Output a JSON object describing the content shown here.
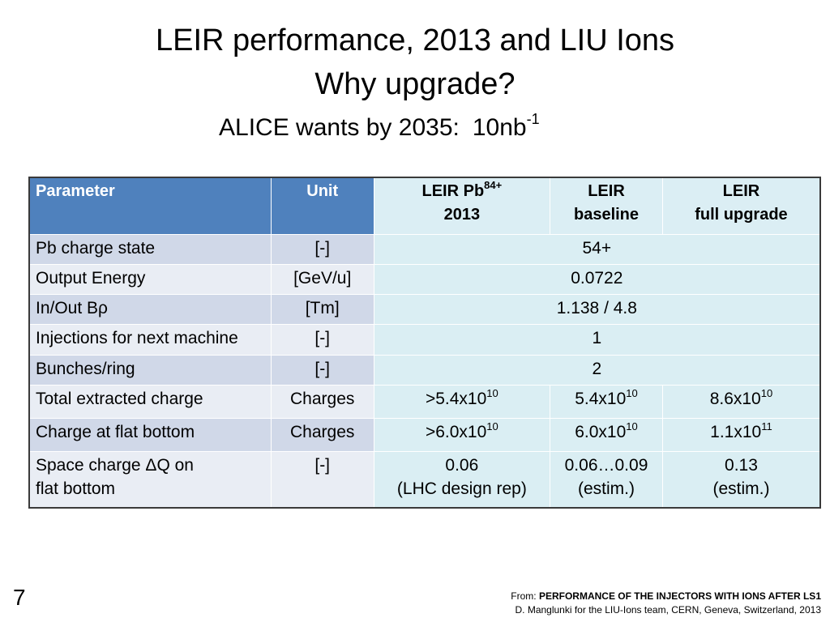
{
  "title": {
    "line1": "LEIR performance, 2013 and LIU Ions",
    "line2": "Why upgrade?",
    "line3_text": "ALICE wants by 2035:",
    "line3_value": "10nb",
    "line3_exp": "-1"
  },
  "table": {
    "headers": {
      "parameter": "Parameter",
      "unit": "Unit",
      "col1_l1": "LEIR Pb",
      "col1_sup": "84+",
      "col1_l2": "2013",
      "col2_l1": "LEIR",
      "col2_l2": "baseline",
      "col3_l1": "LEIR",
      "col3_l2": "full upgrade"
    },
    "rows": [
      {
        "param": "Pb charge state",
        "unit": "[-]",
        "value": "54+"
      },
      {
        "param": "Output Energy",
        "unit": "[GeV/u]",
        "value": "0.0722"
      },
      {
        "param": "In/Out Bρ",
        "unit": "[Tm]",
        "value": "1.138 / 4.8"
      },
      {
        "param": "Injections for next machine",
        "unit": "[-]",
        "value": "1"
      },
      {
        "param": "Bunches/ring",
        "unit": "[-]",
        "value": "2"
      },
      {
        "param": "Total extracted charge",
        "unit": "Charges",
        "v1": ">5.4x10",
        "v1e": "10",
        "v2": "5.4x10",
        "v2e": "10",
        "v3": "8.6x10",
        "v3e": "10"
      },
      {
        "param": "Charge at flat bottom",
        "unit": "Charges",
        "v1": ">6.0x10",
        "v1e": "10",
        "v2": "6.0x10",
        "v2e": "10",
        "v3": "1.1x10",
        "v3e": "11"
      },
      {
        "param_l1": "Space charge ΔQ on",
        "param_l2": "flat bottom",
        "unit": "[-]",
        "v1_l1": "0.06",
        "v1_l2": "(LHC design rep)",
        "v2_l1": "0.06…0.09",
        "v2_l2": "(estim.)",
        "v3_l1": "0.13",
        "v3_l2": "(estim.)"
      }
    ]
  },
  "slide_number": "7",
  "footer": {
    "from_label": "From: ",
    "source_title": "PERFORMANCE OF THE INJECTORS WITH IONS AFTER LS1",
    "author_line": "D. Manglunki for the LIU-Ions team, CERN, Geneva, Switzerland, 2013"
  }
}
